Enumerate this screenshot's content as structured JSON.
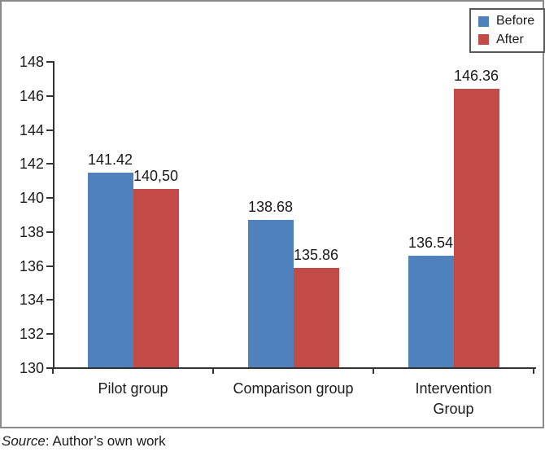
{
  "figure": {
    "source_prefix": "Source",
    "source_suffix": ": Author’s own work"
  },
  "chart_data": {
    "type": "bar",
    "title": "",
    "xlabel": "",
    "ylabel": "",
    "categories": [
      "Pilot group",
      "Comparison group",
      "Intervention\nGroup"
    ],
    "series": [
      {
        "name": "Before",
        "color": "#4F81BD",
        "values": [
          141.42,
          138.68,
          136.54
        ],
        "value_labels": [
          "141.42",
          "138.68",
          "136.54"
        ]
      },
      {
        "name": "After",
        "color": "#C24B48",
        "values": [
          140.5,
          135.86,
          146.36
        ],
        "value_labels": [
          "140,50",
          "135.86",
          "146.36"
        ]
      }
    ],
    "ylim": [
      130,
      148
    ],
    "yticks": [
      130,
      132,
      134,
      136,
      138,
      140,
      142,
      144,
      146,
      148
    ],
    "legend_position": "top-right",
    "grid": false
  }
}
